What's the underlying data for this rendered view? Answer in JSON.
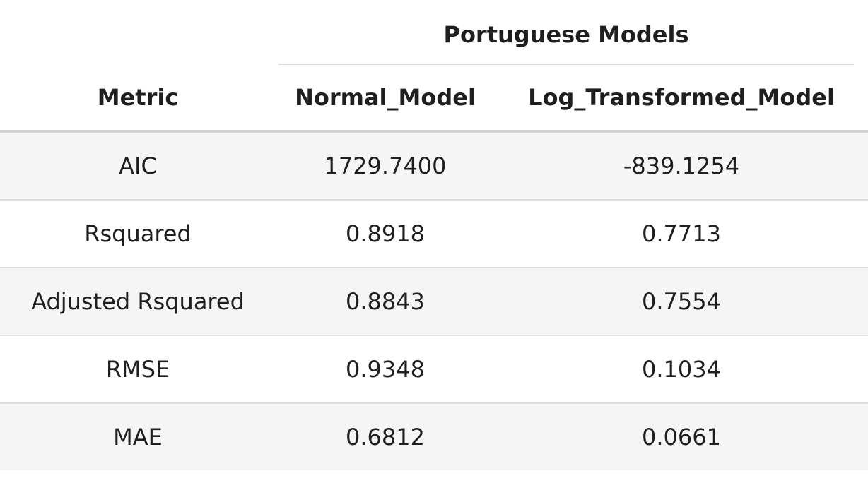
{
  "table": {
    "spanner_label": "Portuguese Models",
    "columns": [
      "Metric",
      "Normal_Model",
      "Log_Transformed_Model"
    ],
    "rows": [
      {
        "metric": "AIC",
        "normal": "1729.7400",
        "log": "-839.1254"
      },
      {
        "metric": "Rsquared",
        "normal": "0.8918",
        "log": "0.7713"
      },
      {
        "metric": "Adjusted Rsquared",
        "normal": "0.8843",
        "log": "0.7554"
      },
      {
        "metric": "RMSE",
        "normal": "0.9348",
        "log": "0.1034"
      },
      {
        "metric": "MAE",
        "normal": "0.6812",
        "log": "0.0661"
      }
    ]
  },
  "colors": {
    "striped_row": "#f5f5f5",
    "header_rule": "#d3d3d3",
    "row_rule": "#dddddd"
  }
}
